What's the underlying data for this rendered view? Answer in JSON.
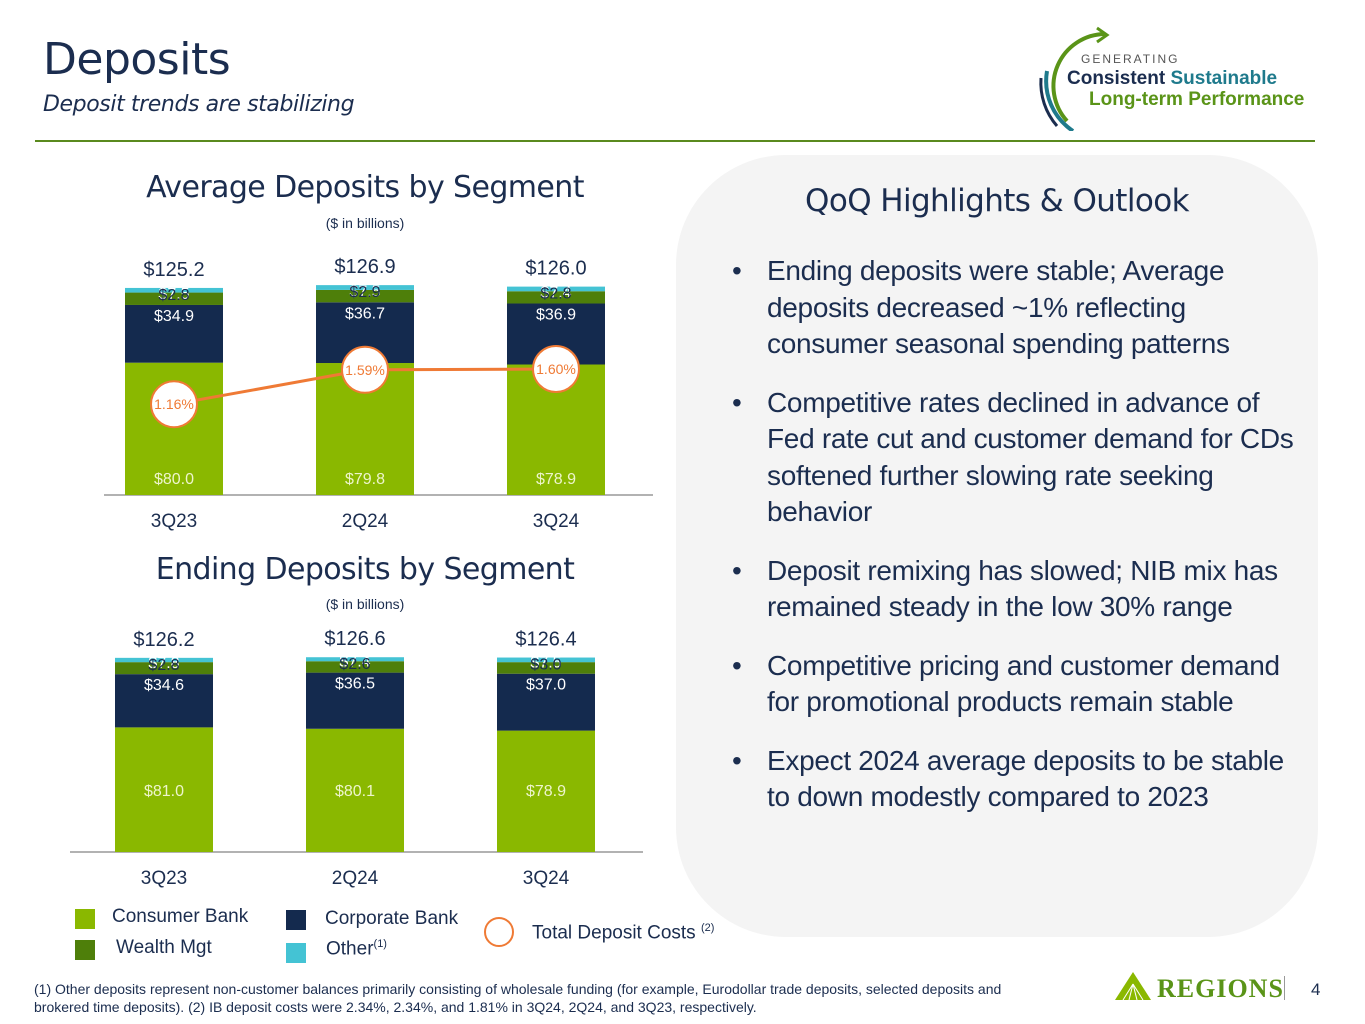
{
  "header": {
    "title": "Deposits",
    "subtitle": "Deposit trends are stabilizing"
  },
  "logo": {
    "generating": "GENERATING",
    "consistent": "Consistent",
    "sustainable": "Sustainable",
    "long_term": "Long-term Performance"
  },
  "colors": {
    "consumer": "#8ab800",
    "wealth": "#4e7f0a",
    "corporate": "#142a4e",
    "other": "#44c3d4",
    "cost_line": "#ef7a35",
    "title": "#1b2d4f"
  },
  "chart_data": [
    {
      "type": "bar",
      "stacked": true,
      "title": "Average Deposits by Segment",
      "subtitle": "($ in billions)",
      "categories": [
        "3Q23",
        "2Q24",
        "3Q24"
      ],
      "series": [
        {
          "name": "Consumer Bank",
          "values": [
            80.0,
            79.8,
            78.9
          ],
          "labels": [
            "$80.0",
            "$79.8",
            "$78.9"
          ]
        },
        {
          "name": "Corporate Bank",
          "values": [
            34.9,
            36.7,
            36.9
          ],
          "labels": [
            "$34.9",
            "$36.7",
            "$36.9"
          ]
        },
        {
          "name": "Wealth Mgt",
          "values": [
            7.5,
            7.5,
            7.4
          ],
          "labels": [
            "$7.5",
            "$7.5",
            "$7.4"
          ]
        },
        {
          "name": "Other",
          "values": [
            2.8,
            2.9,
            2.8
          ],
          "labels": [
            "$2.8",
            "$2.9",
            "$2.8"
          ]
        }
      ],
      "totals": [
        "$125.2",
        "$126.9",
        "$126.0"
      ],
      "line_series": {
        "name": "Total Deposit Costs",
        "values": [
          1.16,
          1.59,
          1.6
        ],
        "labels": [
          "1.16%",
          "1.59%",
          "1.60%"
        ]
      },
      "ylim": [
        0,
        130
      ]
    },
    {
      "type": "bar",
      "stacked": true,
      "title": "Ending Deposits by Segment",
      "subtitle": "($ in billions)",
      "categories": [
        "3Q23",
        "2Q24",
        "3Q24"
      ],
      "series": [
        {
          "name": "Consumer Bank",
          "values": [
            81.0,
            80.1,
            78.9
          ],
          "labels": [
            "$81.0",
            "$80.1",
            "$78.9"
          ]
        },
        {
          "name": "Corporate Bank",
          "values": [
            34.6,
            36.5,
            37.0
          ],
          "labels": [
            "$34.6",
            "$36.5",
            "$37.0"
          ]
        },
        {
          "name": "Wealth Mgt",
          "values": [
            7.8,
            7.4,
            7.5
          ],
          "labels": [
            "$7.8",
            "$7.4",
            "$7.5"
          ]
        },
        {
          "name": "Other",
          "values": [
            2.8,
            2.6,
            3.0
          ],
          "labels": [
            "$2.8",
            "$2.6",
            "$3.0"
          ]
        }
      ],
      "totals": [
        "$126.2",
        "$126.6",
        "$126.4"
      ],
      "ylim": [
        0,
        130
      ]
    }
  ],
  "legend": {
    "consumer": "Consumer Bank",
    "wealth": "Wealth Mgt",
    "corporate": "Corporate Bank",
    "other": "Other",
    "other_sup": "(1)",
    "cost": "Total Deposit Costs",
    "cost_sup": "(2)"
  },
  "panel": {
    "title": "QoQ Highlights & Outlook",
    "bullets": [
      "Ending deposits were stable; Average deposits decreased ~1% reflecting consumer seasonal spending patterns",
      "Competitive rates declined in advance of Fed rate cut and customer demand for CDs softened further slowing rate seeking behavior",
      "Deposit remixing has slowed; NIB mix has remained steady in the low 30% range",
      "Competitive pricing and customer demand for promotional products remain stable",
      "Expect 2024 average deposits to be stable to down modestly compared to 2023"
    ]
  },
  "footnote": "(1) Other deposits represent non-customer balances primarily consisting of wholesale funding (for example, Eurodollar trade deposits, selected deposits and brokered time deposits).  (2) IB deposit costs were 2.34%, 2.34%, and 1.81% in 3Q24, 2Q24, and 3Q23, respectively.",
  "brand": {
    "name": "REGIONS",
    "page_number": "4"
  }
}
